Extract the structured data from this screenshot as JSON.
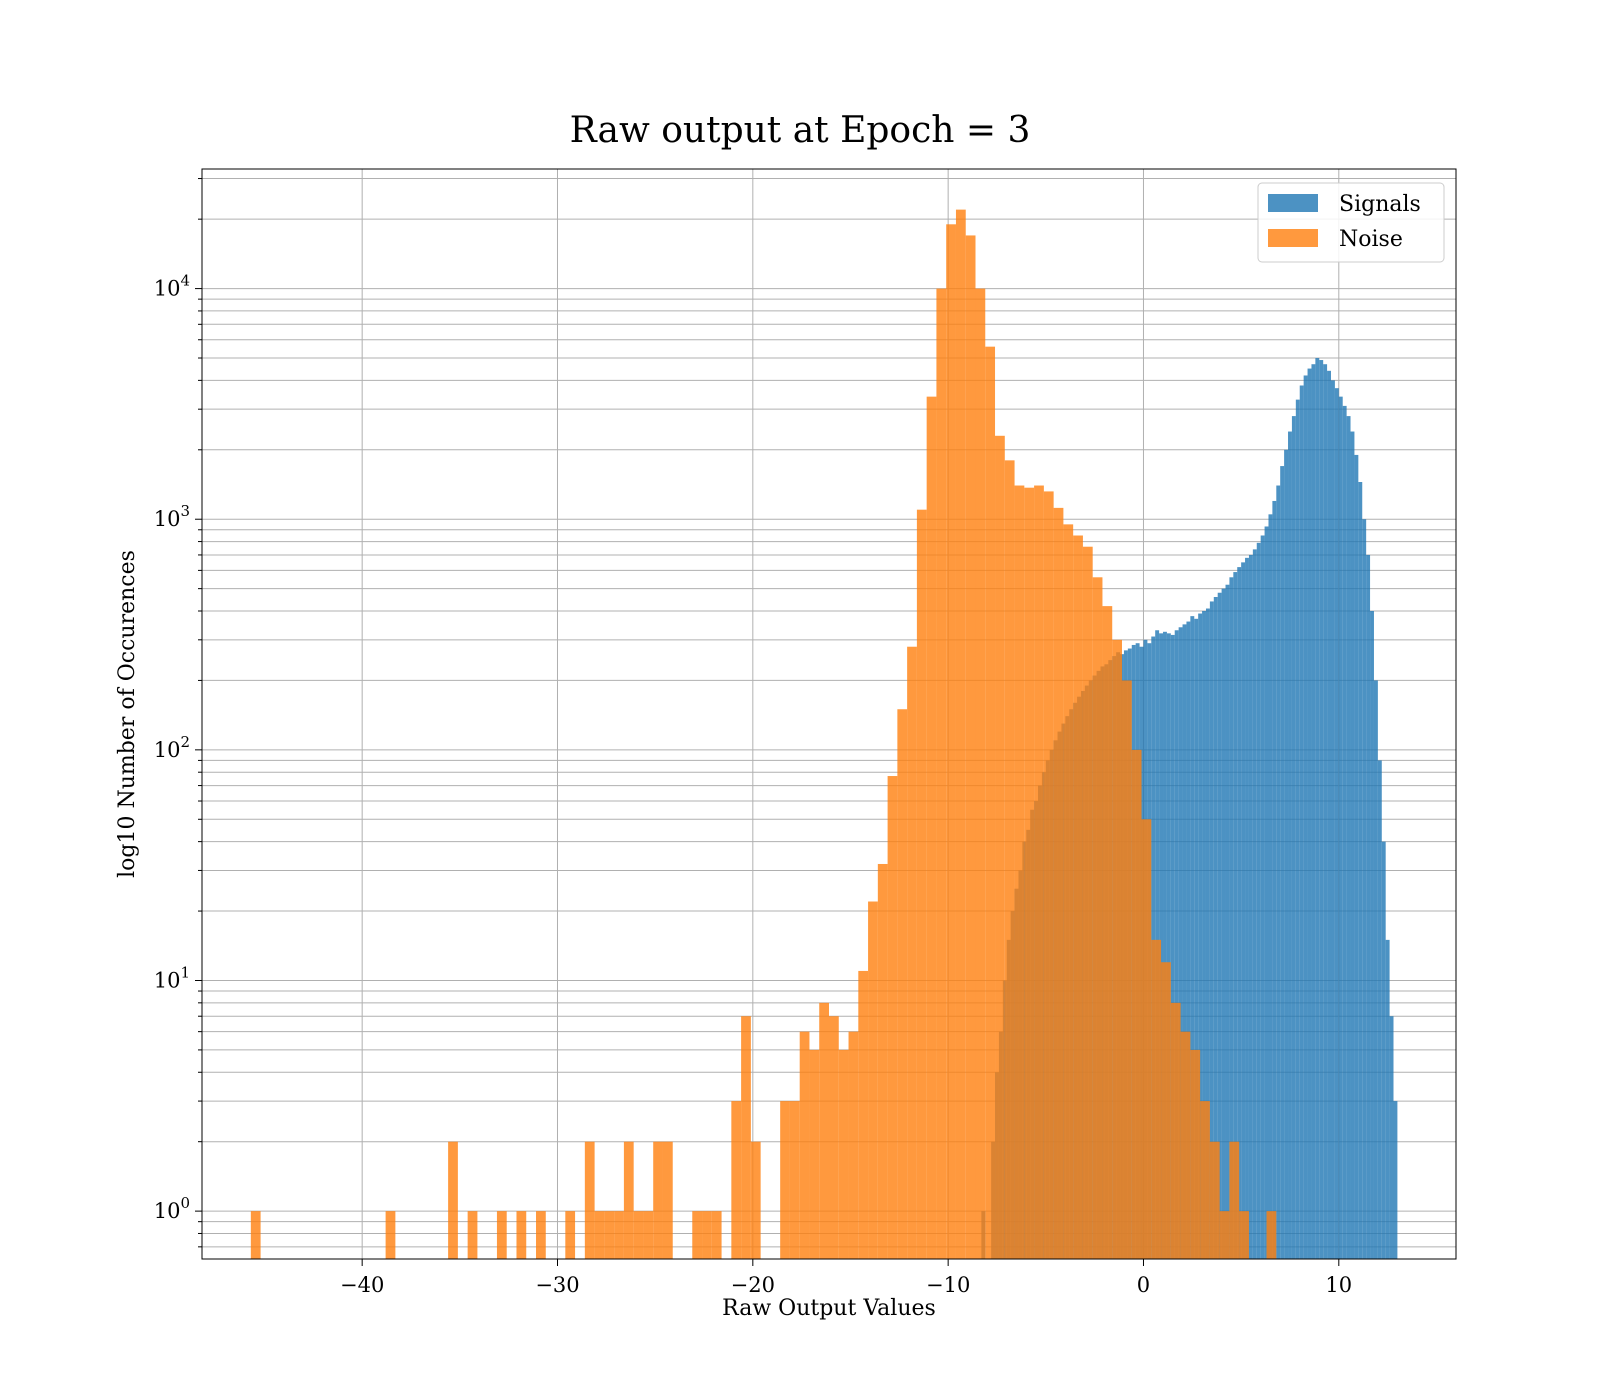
{
  "chart_data": {
    "type": "histogram",
    "title": "Raw output at Epoch = 3",
    "xlabel": "Raw Output Values",
    "ylabel": "log10 Number of Occurences",
    "xlim": [
      -48.2,
      16.0
    ],
    "ylim": [
      0.62,
      33000
    ],
    "yscale": "log",
    "grid": true,
    "legend_position": "top-right",
    "x_ticks": [
      -40,
      -30,
      -20,
      -10,
      0,
      10
    ],
    "x_tick_labels": [
      "−40",
      "−30",
      "−20",
      "−10",
      "0",
      "10"
    ],
    "y_ticks": [
      1,
      10,
      100,
      1000,
      10000
    ],
    "y_tick_labels": [
      {
        "base": "10",
        "exp": "0"
      },
      {
        "base": "10",
        "exp": "1"
      },
      {
        "base": "10",
        "exp": "2"
      },
      {
        "base": "10",
        "exp": "3"
      },
      {
        "base": "10",
        "exp": "4"
      }
    ],
    "series": [
      {
        "name": "Signals",
        "color": "#1f77b4",
        "opacity": 0.8,
        "bins": [
          [
            -8.3,
            -8.1,
            1
          ],
          [
            -7.8,
            -7.6,
            2
          ],
          [
            -7.6,
            -7.4,
            4
          ],
          [
            -7.4,
            -7.2,
            6
          ],
          [
            -7.2,
            -7.0,
            10
          ],
          [
            -7.0,
            -6.8,
            15
          ],
          [
            -6.8,
            -6.6,
            20
          ],
          [
            -6.6,
            -6.4,
            25
          ],
          [
            -6.4,
            -6.2,
            30
          ],
          [
            -6.2,
            -6.0,
            40
          ],
          [
            -6.0,
            -5.8,
            45
          ],
          [
            -5.8,
            -5.6,
            55
          ],
          [
            -5.6,
            -5.4,
            60
          ],
          [
            -5.4,
            -5.2,
            70
          ],
          [
            -5.2,
            -5.0,
            80
          ],
          [
            -5.0,
            -4.8,
            90
          ],
          [
            -4.8,
            -4.6,
            100
          ],
          [
            -4.6,
            -4.4,
            110
          ],
          [
            -4.4,
            -4.2,
            120
          ],
          [
            -4.2,
            -4.0,
            130
          ],
          [
            -4.0,
            -3.8,
            140
          ],
          [
            -3.8,
            -3.6,
            150
          ],
          [
            -3.6,
            -3.4,
            160
          ],
          [
            -3.4,
            -3.2,
            170
          ],
          [
            -3.2,
            -3.0,
            180
          ],
          [
            -3.0,
            -2.8,
            190
          ],
          [
            -2.8,
            -2.6,
            200
          ],
          [
            -2.6,
            -2.4,
            210
          ],
          [
            -2.4,
            -2.2,
            220
          ],
          [
            -2.2,
            -2.0,
            230
          ],
          [
            -2.0,
            -1.8,
            235
          ],
          [
            -1.8,
            -1.6,
            245
          ],
          [
            -1.6,
            -1.4,
            255
          ],
          [
            -1.4,
            -1.2,
            265
          ],
          [
            -1.2,
            -1.0,
            260
          ],
          [
            -1.0,
            -0.8,
            270
          ],
          [
            -0.8,
            -0.6,
            275
          ],
          [
            -0.6,
            -0.4,
            285
          ],
          [
            -0.4,
            -0.2,
            290
          ],
          [
            -0.2,
            0.0,
            280
          ],
          [
            0.0,
            0.2,
            300
          ],
          [
            0.2,
            0.4,
            290
          ],
          [
            0.4,
            0.6,
            310
          ],
          [
            0.6,
            0.8,
            330
          ],
          [
            0.8,
            1.0,
            320
          ],
          [
            1.0,
            1.2,
            325
          ],
          [
            1.2,
            1.4,
            320
          ],
          [
            1.4,
            1.6,
            315
          ],
          [
            1.6,
            1.8,
            330
          ],
          [
            1.8,
            2.0,
            340
          ],
          [
            2.0,
            2.2,
            350
          ],
          [
            2.2,
            2.4,
            360
          ],
          [
            2.4,
            2.6,
            380
          ],
          [
            2.6,
            2.8,
            370
          ],
          [
            2.8,
            3.0,
            390
          ],
          [
            3.0,
            3.2,
            400
          ],
          [
            3.2,
            3.4,
            410
          ],
          [
            3.4,
            3.6,
            440
          ],
          [
            3.6,
            3.8,
            460
          ],
          [
            3.8,
            4.0,
            480
          ],
          [
            4.0,
            4.2,
            500
          ],
          [
            4.2,
            4.4,
            520
          ],
          [
            4.4,
            4.6,
            560
          ],
          [
            4.6,
            4.8,
            590
          ],
          [
            4.8,
            5.0,
            620
          ],
          [
            5.0,
            5.2,
            650
          ],
          [
            5.2,
            5.4,
            680
          ],
          [
            5.4,
            5.6,
            700
          ],
          [
            5.6,
            5.8,
            740
          ],
          [
            5.8,
            6.0,
            790
          ],
          [
            6.0,
            6.2,
            850
          ],
          [
            6.2,
            6.4,
            930
          ],
          [
            6.4,
            6.6,
            1050
          ],
          [
            6.6,
            6.8,
            1200
          ],
          [
            6.8,
            7.0,
            1400
          ],
          [
            7.0,
            7.2,
            1700
          ],
          [
            7.2,
            7.4,
            2000
          ],
          [
            7.4,
            7.6,
            2400
          ],
          [
            7.6,
            7.8,
            2800
          ],
          [
            7.8,
            8.0,
            3300
          ],
          [
            8.0,
            8.2,
            3800
          ],
          [
            8.2,
            8.4,
            4200
          ],
          [
            8.4,
            8.6,
            4500
          ],
          [
            8.6,
            8.8,
            4700
          ],
          [
            8.8,
            9.0,
            5000
          ],
          [
            9.0,
            9.2,
            4900
          ],
          [
            9.2,
            9.4,
            4700
          ],
          [
            9.4,
            9.6,
            4400
          ],
          [
            9.6,
            9.8,
            4000
          ],
          [
            9.8,
            10.0,
            3700
          ],
          [
            10.0,
            10.2,
            3400
          ],
          [
            10.2,
            10.4,
            3100
          ],
          [
            10.4,
            10.6,
            2800
          ],
          [
            10.6,
            10.8,
            2400
          ],
          [
            10.8,
            11.0,
            1900
          ],
          [
            11.0,
            11.2,
            1450
          ],
          [
            11.2,
            11.4,
            1000
          ],
          [
            11.4,
            11.6,
            700
          ],
          [
            11.6,
            11.8,
            400
          ],
          [
            11.8,
            12.0,
            200
          ],
          [
            12.0,
            12.2,
            90
          ],
          [
            12.2,
            12.4,
            40
          ],
          [
            12.4,
            12.6,
            15
          ],
          [
            12.6,
            12.8,
            7
          ],
          [
            12.8,
            13.0,
            3
          ]
        ]
      },
      {
        "name": "Noise",
        "color": "#ff7f0e",
        "opacity": 0.8,
        "bins": [
          [
            -45.7,
            -45.2,
            1
          ],
          [
            -38.8,
            -38.3,
            1
          ],
          [
            -35.6,
            -35.1,
            2
          ],
          [
            -34.6,
            -34.1,
            1
          ],
          [
            -33.1,
            -32.6,
            1
          ],
          [
            -32.1,
            -31.6,
            1
          ],
          [
            -31.1,
            -30.6,
            1
          ],
          [
            -29.6,
            -29.1,
            1
          ],
          [
            -28.6,
            -28.1,
            2
          ],
          [
            -28.1,
            -27.6,
            1
          ],
          [
            -27.6,
            -27.1,
            1
          ],
          [
            -27.1,
            -26.6,
            1
          ],
          [
            -26.6,
            -26.1,
            2
          ],
          [
            -26.1,
            -25.6,
            1
          ],
          [
            -25.6,
            -25.1,
            1
          ],
          [
            -25.1,
            -24.6,
            2
          ],
          [
            -24.6,
            -24.1,
            2
          ],
          [
            -23.1,
            -22.6,
            1
          ],
          [
            -22.6,
            -22.1,
            1
          ],
          [
            -22.1,
            -21.6,
            1
          ],
          [
            -21.1,
            -20.6,
            3
          ],
          [
            -20.6,
            -20.1,
            7
          ],
          [
            -20.1,
            -19.6,
            2
          ],
          [
            -18.6,
            -18.1,
            3
          ],
          [
            -18.1,
            -17.6,
            3
          ],
          [
            -17.6,
            -17.1,
            6
          ],
          [
            -17.1,
            -16.6,
            5
          ],
          [
            -16.6,
            -16.1,
            8
          ],
          [
            -16.1,
            -15.6,
            7
          ],
          [
            -15.6,
            -15.1,
            5
          ],
          [
            -15.1,
            -14.6,
            6
          ],
          [
            -14.6,
            -14.1,
            11
          ],
          [
            -14.1,
            -13.6,
            22
          ],
          [
            -13.6,
            -13.1,
            32
          ],
          [
            -13.1,
            -12.6,
            77
          ],
          [
            -12.6,
            -12.1,
            150
          ],
          [
            -12.1,
            -11.6,
            280
          ],
          [
            -11.6,
            -11.1,
            1100
          ],
          [
            -11.1,
            -10.6,
            3400
          ],
          [
            -10.6,
            -10.1,
            10000
          ],
          [
            -10.1,
            -9.6,
            19000
          ],
          [
            -9.6,
            -9.1,
            22000
          ],
          [
            -9.1,
            -8.6,
            17000
          ],
          [
            -8.6,
            -8.1,
            10000
          ],
          [
            -8.1,
            -7.6,
            5600
          ],
          [
            -7.6,
            -7.1,
            2300
          ],
          [
            -7.1,
            -6.6,
            1800
          ],
          [
            -6.6,
            -6.1,
            1400
          ],
          [
            -6.1,
            -5.6,
            1370
          ],
          [
            -5.6,
            -5.1,
            1400
          ],
          [
            -5.1,
            -4.6,
            1320
          ],
          [
            -4.6,
            -4.1,
            1120
          ],
          [
            -4.1,
            -3.6,
            950
          ],
          [
            -3.6,
            -3.1,
            850
          ],
          [
            -3.1,
            -2.6,
            760
          ],
          [
            -2.6,
            -2.1,
            560
          ],
          [
            -2.1,
            -1.6,
            420
          ],
          [
            -1.6,
            -1.1,
            300
          ],
          [
            -1.1,
            -0.6,
            200
          ],
          [
            -0.6,
            -0.1,
            100
          ],
          [
            -0.1,
            0.4,
            50
          ],
          [
            0.4,
            0.9,
            15
          ],
          [
            0.9,
            1.4,
            12
          ],
          [
            1.4,
            1.9,
            8
          ],
          [
            1.9,
            2.4,
            6
          ],
          [
            2.4,
            2.9,
            5
          ],
          [
            2.9,
            3.4,
            3
          ],
          [
            3.4,
            3.9,
            2
          ],
          [
            3.9,
            4.4,
            1
          ],
          [
            4.4,
            4.9,
            2
          ],
          [
            4.9,
            5.4,
            1
          ],
          [
            6.3,
            6.8,
            1
          ]
        ]
      }
    ]
  }
}
